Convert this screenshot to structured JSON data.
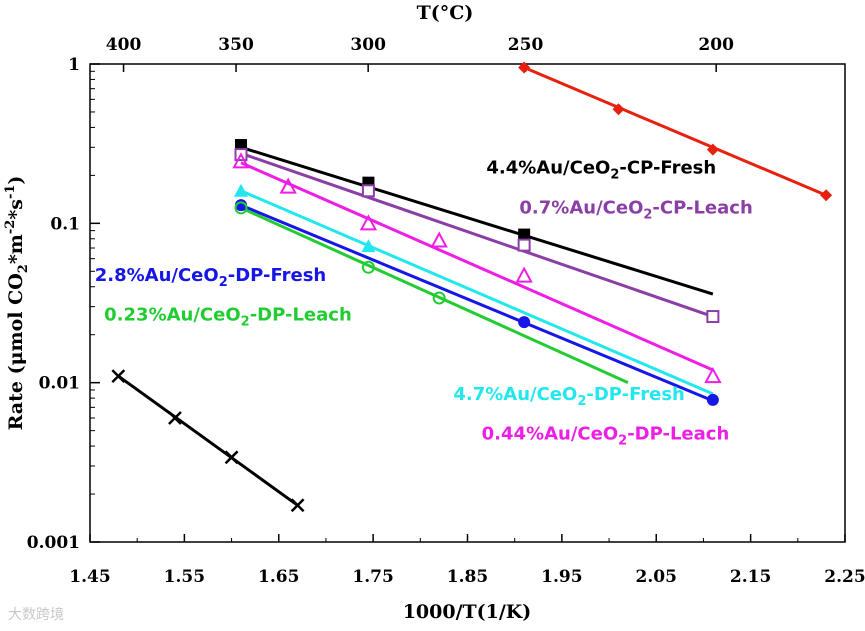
{
  "chart_data": {
    "type": "scatter",
    "xlabel": "1000/T(1/K)",
    "ylabel": "Rate (μmol CO2*m^-2*s^-1)",
    "x2label": "T(°C)",
    "xlim": [
      1.45,
      2.25
    ],
    "ylim": [
      0.001,
      1
    ],
    "yscale": "log",
    "x_ticks": [
      "1.45",
      "1.55",
      "1.65",
      "1.75",
      "1.85",
      "1.95",
      "2.05",
      "2.15",
      "2.25"
    ],
    "y_ticks": [
      "0.001",
      "0.01",
      "0.1",
      "1"
    ],
    "top_ticks": [
      "400",
      "350",
      "300",
      "250",
      "200"
    ],
    "grid": false,
    "series": [
      {
        "name": "4.4%Au/CeO2-CP-Fresh",
        "color": "#000000",
        "marker": "square-filled",
        "points": [
          [
            1.61,
            0.31
          ],
          [
            1.745,
            0.18
          ],
          [
            1.91,
            0.085
          ]
        ],
        "fit": [
          [
            1.61,
            0.3
          ],
          [
            2.11,
            0.036
          ]
        ]
      },
      {
        "name": "0.7%Au/CeO2-CP-Leach",
        "color": "#8b3fa6",
        "marker": "square-open",
        "points": [
          [
            1.61,
            0.27
          ],
          [
            1.745,
            0.16
          ],
          [
            1.91,
            0.073
          ],
          [
            2.11,
            0.026
          ]
        ],
        "fit": [
          [
            1.61,
            0.275
          ],
          [
            2.11,
            0.026
          ]
        ]
      },
      {
        "name": "0.44%Au/CeO2-DP-Leach",
        "color": "#ee1ee6",
        "marker": "triangle-open",
        "points": [
          [
            1.61,
            0.245
          ],
          [
            1.66,
            0.17
          ],
          [
            1.745,
            0.1
          ],
          [
            1.82,
            0.078
          ],
          [
            1.91,
            0.047
          ],
          [
            2.11,
            0.011
          ]
        ],
        "fit": [
          [
            1.61,
            0.24
          ],
          [
            2.11,
            0.012
          ]
        ]
      },
      {
        "name": "4.7%Au/CeO2-DP-Fresh",
        "color": "#22e8ee",
        "marker": "triangle-filled",
        "points": [
          [
            1.61,
            0.16
          ],
          [
            1.745,
            0.072
          ]
        ],
        "fit": [
          [
            1.61,
            0.16
          ],
          [
            2.11,
            0.0085
          ]
        ]
      },
      {
        "name": "2.8%Au/CeO2-DP-Fresh",
        "color": "#1616e6",
        "marker": "circle-filled",
        "points": [
          [
            1.61,
            0.13
          ],
          [
            1.91,
            0.024
          ],
          [
            2.11,
            0.0078
          ]
        ],
        "fit": [
          [
            1.61,
            0.13
          ],
          [
            2.11,
            0.0077
          ]
        ]
      },
      {
        "name": "0.23%Au/CeO2-DP-Leach",
        "color": "#22cc33",
        "marker": "circle-open",
        "points": [
          [
            1.61,
            0.125
          ],
          [
            1.745,
            0.053
          ],
          [
            1.82,
            0.034
          ]
        ],
        "fit": [
          [
            1.61,
            0.125
          ],
          [
            2.02,
            0.01
          ]
        ]
      },
      {
        "name": "",
        "color": "#e8200f",
        "marker": "diamond-filled",
        "points": [
          [
            1.91,
            0.95
          ],
          [
            2.01,
            0.52
          ],
          [
            2.11,
            0.29
          ],
          [
            2.23,
            0.15
          ]
        ],
        "fit": [
          [
            1.91,
            0.95
          ],
          [
            2.23,
            0.15
          ]
        ]
      },
      {
        "name": "",
        "color": "#000000",
        "marker": "cross",
        "points": [
          [
            1.48,
            0.011
          ],
          [
            1.54,
            0.006
          ],
          [
            1.6,
            0.0034
          ],
          [
            1.67,
            0.0017
          ]
        ],
        "fit": [
          [
            1.48,
            0.011
          ],
          [
            1.67,
            0.0017
          ]
        ]
      }
    ],
    "labels": [
      {
        "text": "4.4%Au/CeO",
        "sub": "2",
        "rest": "-CP-Fresh",
        "color": "#000000",
        "x": 1.87,
        "y": 0.205
      },
      {
        "text": "0.7%Au/CeO",
        "sub": "2",
        "rest": "-CP-Leach",
        "color": "#8b3fa6",
        "x": 1.905,
        "y": 0.115
      },
      {
        "text": "2.8%Au/CeO",
        "sub": "2",
        "rest": "-DP-Fresh",
        "color": "#1616e6",
        "x": 1.455,
        "y": 0.0435
      },
      {
        "text": "0.23%Au/CeO",
        "sub": "2",
        "rest": "-DP-Leach",
        "color": "#22cc33",
        "x": 1.465,
        "y": 0.0245
      },
      {
        "text": "4.7%Au/CeO",
        "sub": "2",
        "rest": "-DP-Fresh",
        "color": "#22e8ee",
        "x": 1.835,
        "y": 0.0078
      },
      {
        "text": "0.44%Au/CeO",
        "sub": "2",
        "rest": "-DP-Leach",
        "color": "#ee1ee6",
        "x": 1.865,
        "y": 0.0044
      }
    ]
  },
  "watermark": "大数跨境"
}
